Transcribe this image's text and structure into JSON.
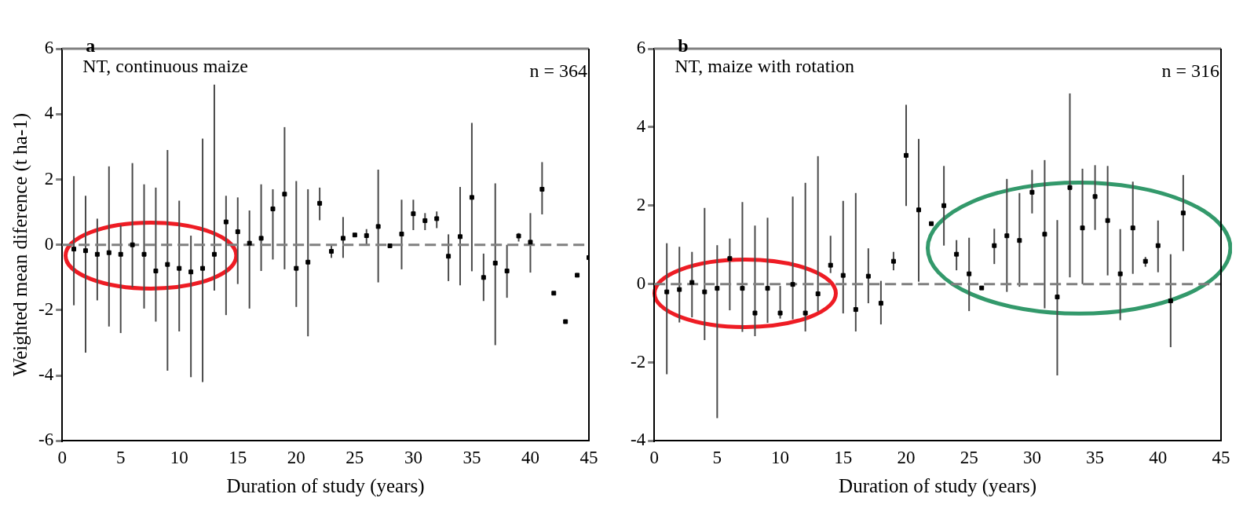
{
  "chart_data": [
    {
      "type": "scatter",
      "title": "a",
      "subtitle": "NT, continuous maize",
      "annotations": [
        "n = 364"
      ],
      "xlabel": "Duration of study (years)",
      "ylabel": "Weighted mean diference (t ha-1)",
      "xlim": [
        0,
        45
      ],
      "xticks": [
        0,
        5,
        10,
        15,
        20,
        25,
        30,
        35,
        40,
        45
      ],
      "ylim": [
        -6,
        6
      ],
      "yticks": [
        -6,
        -4,
        -2,
        0,
        2,
        4,
        6
      ],
      "grid": false,
      "legend": false,
      "marker": "square",
      "ref_lines": [
        {
          "axis": "y",
          "value": 0,
          "color": "#808080",
          "line_style": "dashed"
        }
      ],
      "series": [
        {
          "color": "#000000",
          "x": [
            1,
            2,
            3,
            4,
            5,
            6,
            7,
            8,
            9,
            10,
            11,
            12,
            13,
            14,
            15,
            16,
            17,
            18,
            19,
            20,
            21,
            22,
            23,
            24,
            25,
            26,
            27,
            28,
            29,
            30,
            31,
            32,
            33,
            34,
            35,
            36,
            37,
            38,
            39,
            40,
            41,
            42,
            43,
            44,
            45
          ],
          "values": [
            -0.13,
            -0.18,
            -0.29,
            -0.24,
            -0.29,
            0,
            -0.29,
            -0.8,
            -0.6,
            -0.72,
            -0.83,
            -0.72,
            -0.29,
            0.7,
            0.4,
            0.05,
            0.2,
            1.1,
            1.55,
            -0.72,
            -0.53,
            1.27,
            -0.2,
            0.2,
            0.3,
            0.28,
            0.56,
            -0.03,
            0.33,
            0.95,
            0.74,
            0.8,
            -0.35,
            0.25,
            1.45,
            -1.0,
            -0.56,
            -0.8,
            0.27,
            0.08,
            1.7,
            -1.48,
            -2.35,
            -0.93,
            -0.39
          ],
          "errors": [
            [
              -1.85,
              2.1
            ],
            [
              -3.3,
              1.5
            ],
            [
              -1.7,
              0.8
            ],
            [
              -2.5,
              2.4
            ],
            [
              -2.7,
              0.6
            ],
            [
              -1.3,
              2.5
            ],
            [
              -1.95,
              1.85
            ],
            [
              -2.35,
              1.75
            ],
            [
              -3.85,
              2.9
            ],
            [
              -2.65,
              1.35
            ],
            [
              -4.05,
              0.28
            ],
            [
              -4.2,
              3.25
            ],
            [
              -1.4,
              4.9
            ],
            [
              -2.15,
              1.5
            ],
            [
              -1.2,
              1.45
            ],
            [
              -1.95,
              1.05
            ],
            [
              -0.8,
              1.85
            ],
            [
              -0.45,
              1.7
            ],
            [
              -0.75,
              3.6
            ],
            [
              -1.9,
              1.95
            ],
            [
              -2.8,
              1.7
            ],
            [
              0.75,
              1.75
            ],
            [
              -0.4,
              0.0
            ],
            [
              -0.4,
              0.85
            ],
            null,
            [
              0.0,
              0.48
            ],
            [
              -1.15,
              2.3
            ],
            null,
            [
              -0.75,
              1.38
            ],
            [
              0.45,
              1.38
            ],
            [
              0.45,
              0.97
            ],
            [
              0.51,
              1.02
            ],
            [
              -1.11,
              0.32
            ],
            [
              -1.24,
              1.77
            ],
            [
              -0.81,
              3.73
            ],
            [
              -1.72,
              -0.27
            ],
            [
              -3.07,
              1.88
            ],
            [
              -1.62,
              0
            ],
            [
              0.1,
              0.36
            ],
            [
              -0.85,
              0.97
            ],
            [
              0.93,
              2.53
            ],
            null,
            null,
            null,
            null
          ]
        }
      ]
    },
    {
      "type": "scatter",
      "title": "b",
      "subtitle": "NT, maize with rotation",
      "annotations": [
        "n = 316"
      ],
      "xlabel": "Duration of study (years)",
      "xlim": [
        0,
        45
      ],
      "xticks": [
        0,
        5,
        10,
        15,
        20,
        25,
        30,
        35,
        40,
        45
      ],
      "ylim": [
        -4,
        6
      ],
      "yticks": [
        -4,
        -2,
        0,
        2,
        4,
        6
      ],
      "grid": false,
      "legend": false,
      "marker": "square",
      "ref_lines": [
        {
          "axis": "y",
          "value": 0,
          "color": "#808080",
          "line_style": "dashed"
        }
      ],
      "series": [
        {
          "color": "#000000",
          "x": [
            1,
            2,
            3,
            4,
            5,
            6,
            7,
            8,
            9,
            10,
            11,
            12,
            13,
            14,
            15,
            16,
            17,
            18,
            19,
            20,
            21,
            22,
            23,
            24,
            25,
            26,
            27,
            28,
            29,
            30,
            31,
            32,
            33,
            34,
            35,
            36,
            37,
            38,
            39,
            40,
            41,
            42
          ],
          "values": [
            -0.2,
            -0.14,
            0.04,
            -0.2,
            -0.11,
            0.65,
            -0.11,
            -0.74,
            -0.11,
            -0.74,
            -0.01,
            -0.74,
            -0.25,
            0.48,
            0.22,
            -0.65,
            0.2,
            -0.49,
            0.58,
            3.28,
            1.89,
            1.54,
            2.0,
            0.76,
            0.26,
            -0.1,
            0.98,
            1.23,
            1.11,
            2.34,
            1.27,
            -0.33,
            2.46,
            1.43,
            2.23,
            1.62,
            0.26,
            1.43,
            0.58,
            0.98,
            -0.43,
            1.81
          ],
          "errors": [
            [
              -2.3,
              1.04
            ],
            [
              -0.98,
              0.95
            ],
            [
              -0.85,
              0.82
            ],
            [
              -1.43,
              1.94
            ],
            [
              -3.42,
              0.99
            ],
            [
              -0.67,
              1.16
            ],
            [
              -1.22,
              2.09
            ],
            [
              -1.33,
              1.49
            ],
            [
              -0.99,
              1.69
            ],
            [
              -0.88,
              -0.05
            ],
            [
              -0.9,
              2.23
            ],
            [
              -1.21,
              2.58
            ],
            [
              -0.7,
              3.26
            ],
            [
              0.28,
              1.23
            ],
            [
              -0.75,
              2.12
            ],
            [
              -1.21,
              2.32
            ],
            [
              -0.49,
              0.91
            ],
            [
              -1.03,
              0.08
            ],
            [
              0.35,
              0.82
            ],
            [
              1.99,
              4.57
            ],
            [
              0.06,
              3.7
            ],
            null,
            [
              0.98,
              3.01
            ],
            [
              0.35,
              1.12
            ],
            [
              -0.69,
              1.18
            ],
            null,
            [
              0.51,
              1.41
            ],
            [
              -0.2,
              2.68
            ],
            [
              -0.07,
              2.32
            ],
            [
              1.8,
              2.91
            ],
            [
              -0.62,
              3.16
            ],
            [
              -2.33,
              1.63
            ],
            [
              0.17,
              4.86
            ],
            [
              0,
              2.94
            ],
            [
              1.38,
              3.03
            ],
            [
              0.22,
              3.01
            ],
            [
              -0.92,
              1.4
            ],
            [
              0.26,
              2.61
            ],
            [
              0.44,
              0.69
            ],
            [
              0.3,
              1.62
            ],
            [
              -1.61,
              0.76
            ],
            [
              0.84,
              2.78
            ]
          ]
        }
      ]
    }
  ]
}
